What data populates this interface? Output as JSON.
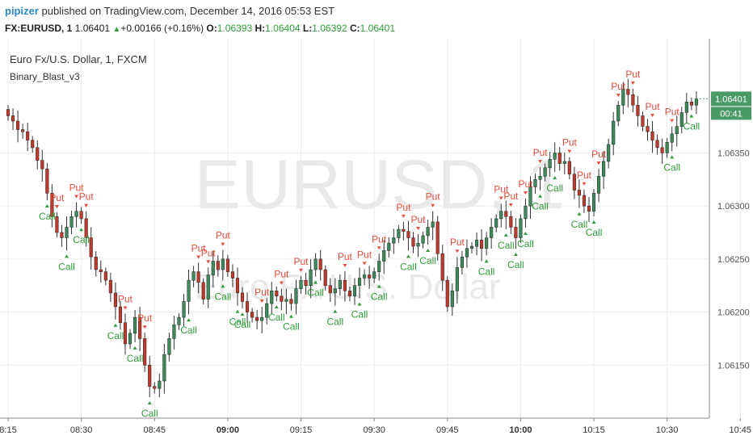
{
  "header": {
    "user": "pipizer",
    "published": "published on TradingView.com, December 14, 2016 05:53 EST",
    "symbol": "FX:EURUSD, 1",
    "last": "1.06401",
    "change": "+0.00166 (+0.16%)",
    "o_label": "O:",
    "o_value": "1.06393",
    "h_label": "H:",
    "h_value": "1.06404",
    "l_label": "L:",
    "l_value": "1.06392",
    "c_label": "C:",
    "c_value": "1.06401"
  },
  "chart": {
    "symbol_title": "Euro Fx/U.S. Dollar, 1, FXCM",
    "indicator": "Binary_Blast_v3",
    "watermark_main": "EURUSD, 1",
    "watermark_sub": "Euro Fx/U.S. Dollar",
    "price_label": "1.06401",
    "countdown_label": "00:41"
  },
  "colors": {
    "up": "#3c8a5b",
    "down": "#c0392b",
    "put": "#e74c3c",
    "call": "#2e9e3a",
    "price_tag": "#4a9a66"
  },
  "chart_data": {
    "type": "candlestick",
    "ylim": [
      1.061,
      1.0645
    ],
    "y_ticks": [
      "1.06350",
      "1.06300",
      "1.06250",
      "1.06200",
      "1.06150"
    ],
    "x_ticks": [
      {
        "label": "8:15",
        "bold": false
      },
      {
        "label": "08:30",
        "bold": false
      },
      {
        "label": "08:45",
        "bold": false
      },
      {
        "label": "09:00",
        "bold": true
      },
      {
        "label": "09:15",
        "bold": false
      },
      {
        "label": "09:30",
        "bold": false
      },
      {
        "label": "09:45",
        "bold": false
      },
      {
        "label": "10:00",
        "bold": true
      },
      {
        "label": "10:15",
        "bold": false
      },
      {
        "label": "10:30",
        "bold": false
      },
      {
        "label": "10:45",
        "bold": false
      }
    ],
    "closes": [
      1.06385,
      1.0638,
      1.06372,
      1.0637,
      1.06362,
      1.06355,
      1.06343,
      1.06335,
      1.06312,
      1.0629,
      1.06275,
      1.0627,
      1.0628,
      1.0629,
      1.06295,
      1.06288,
      1.0627,
      1.06252,
      1.0624,
      1.06238,
      1.0623,
      1.06218,
      1.06205,
      1.0619,
      1.0617,
      1.0618,
      1.06195,
      1.06175,
      1.0615,
      1.0613,
      1.06128,
      1.06135,
      1.0616,
      1.06175,
      1.06188,
      1.06195,
      1.0621,
      1.0623,
      1.06238,
      1.06228,
      1.06212,
      1.06235,
      1.06248,
      1.0624,
      1.0625,
      1.06238,
      1.06232,
      1.06218,
      1.0621,
      1.062,
      1.06195,
      1.06192,
      1.06195,
      1.06208,
      1.0622,
      1.06215,
      1.0621,
      1.06212,
      1.06208,
      1.06222,
      1.0623,
      1.06225,
      1.0624,
      1.0625,
      1.0624,
      1.06225,
      1.06218,
      1.06222,
      1.0623,
      1.0622,
      1.06215,
      1.06225,
      1.06232,
      1.06235,
      1.06232,
      1.06238,
      1.06248,
      1.06258,
      1.06265,
      1.0627,
      1.06278,
      1.06276,
      1.0627,
      1.06262,
      1.06265,
      1.06272,
      1.0628,
      1.06285,
      1.06255,
      1.0623,
      1.06205,
      1.0622,
      1.06242,
      1.06252,
      1.0626,
      1.06262,
      1.06268,
      1.0626,
      1.0627,
      1.0628,
      1.06288,
      1.06295,
      1.0629,
      1.0628,
      1.0627,
      1.06288,
      1.063,
      1.06318,
      1.06325,
      1.06328,
      1.06336,
      1.06344,
      1.0635,
      1.0634,
      1.06342,
      1.0633,
      1.06315,
      1.0631,
      1.063,
      1.06295,
      1.06312,
      1.06328,
      1.06342,
      1.06358,
      1.0638,
      1.06395,
      1.0641,
      1.06405,
      1.06395,
      1.06385,
      1.06375,
      1.0637,
      1.06362,
      1.06355,
      1.0635,
      1.0636,
      1.06368,
      1.06375,
      1.06388,
      1.06398,
      1.06395,
      1.06401
    ],
    "puts": [
      [
        10,
        "Put"
      ],
      [
        14,
        "Put"
      ],
      [
        16,
        "Put"
      ],
      [
        24,
        "Put"
      ],
      [
        28,
        "Put"
      ],
      [
        39,
        "Put"
      ],
      [
        41,
        "Put"
      ],
      [
        44,
        "Put"
      ],
      [
        52,
        "Put"
      ],
      [
        56,
        "Put"
      ],
      [
        60,
        "Put"
      ],
      [
        69,
        "Put"
      ],
      [
        73,
        "Put"
      ],
      [
        76,
        "Put"
      ],
      [
        81,
        "Put"
      ],
      [
        84,
        "Put"
      ],
      [
        87,
        "Put"
      ],
      [
        92,
        "Put"
      ],
      [
        101,
        "Put"
      ],
      [
        103,
        "Put"
      ],
      [
        106,
        "Put"
      ],
      [
        109,
        "Put"
      ],
      [
        115,
        "Put"
      ],
      [
        118,
        "Put"
      ],
      [
        121,
        "Put"
      ],
      [
        125,
        "Put"
      ],
      [
        128,
        "Put"
      ],
      [
        132,
        "Put"
      ],
      [
        136,
        "Put"
      ],
      [
        148,
        "Put"
      ],
      [
        152,
        "Put"
      ],
      [
        153,
        "Put"
      ]
    ],
    "calls": [
      [
        8,
        "Call"
      ],
      [
        12,
        "Call"
      ],
      [
        15,
        "Call"
      ],
      [
        22,
        "Call"
      ],
      [
        26,
        "Call"
      ],
      [
        29,
        "Call"
      ],
      [
        37,
        "Call"
      ],
      [
        44,
        "Call"
      ],
      [
        47,
        "Call"
      ],
      [
        48,
        "Call"
      ],
      [
        55,
        "Call"
      ],
      [
        58,
        "Call"
      ],
      [
        63,
        "Call"
      ],
      [
        67,
        "Call"
      ],
      [
        72,
        "Call"
      ],
      [
        76,
        "Call"
      ],
      [
        82,
        "Call"
      ],
      [
        86,
        "Call"
      ],
      [
        98,
        "Call"
      ],
      [
        102,
        "Call"
      ],
      [
        104,
        "Call"
      ],
      [
        106,
        "Call"
      ],
      [
        109,
        "Call"
      ],
      [
        112,
        "Call"
      ],
      [
        117,
        "Call"
      ],
      [
        120,
        "Call"
      ],
      [
        136,
        "Call"
      ],
      [
        140,
        "Call"
      ],
      [
        144,
        "Call"
      ],
      [
        149,
        "Call"
      ],
      [
        152,
        "Call"
      ]
    ]
  }
}
